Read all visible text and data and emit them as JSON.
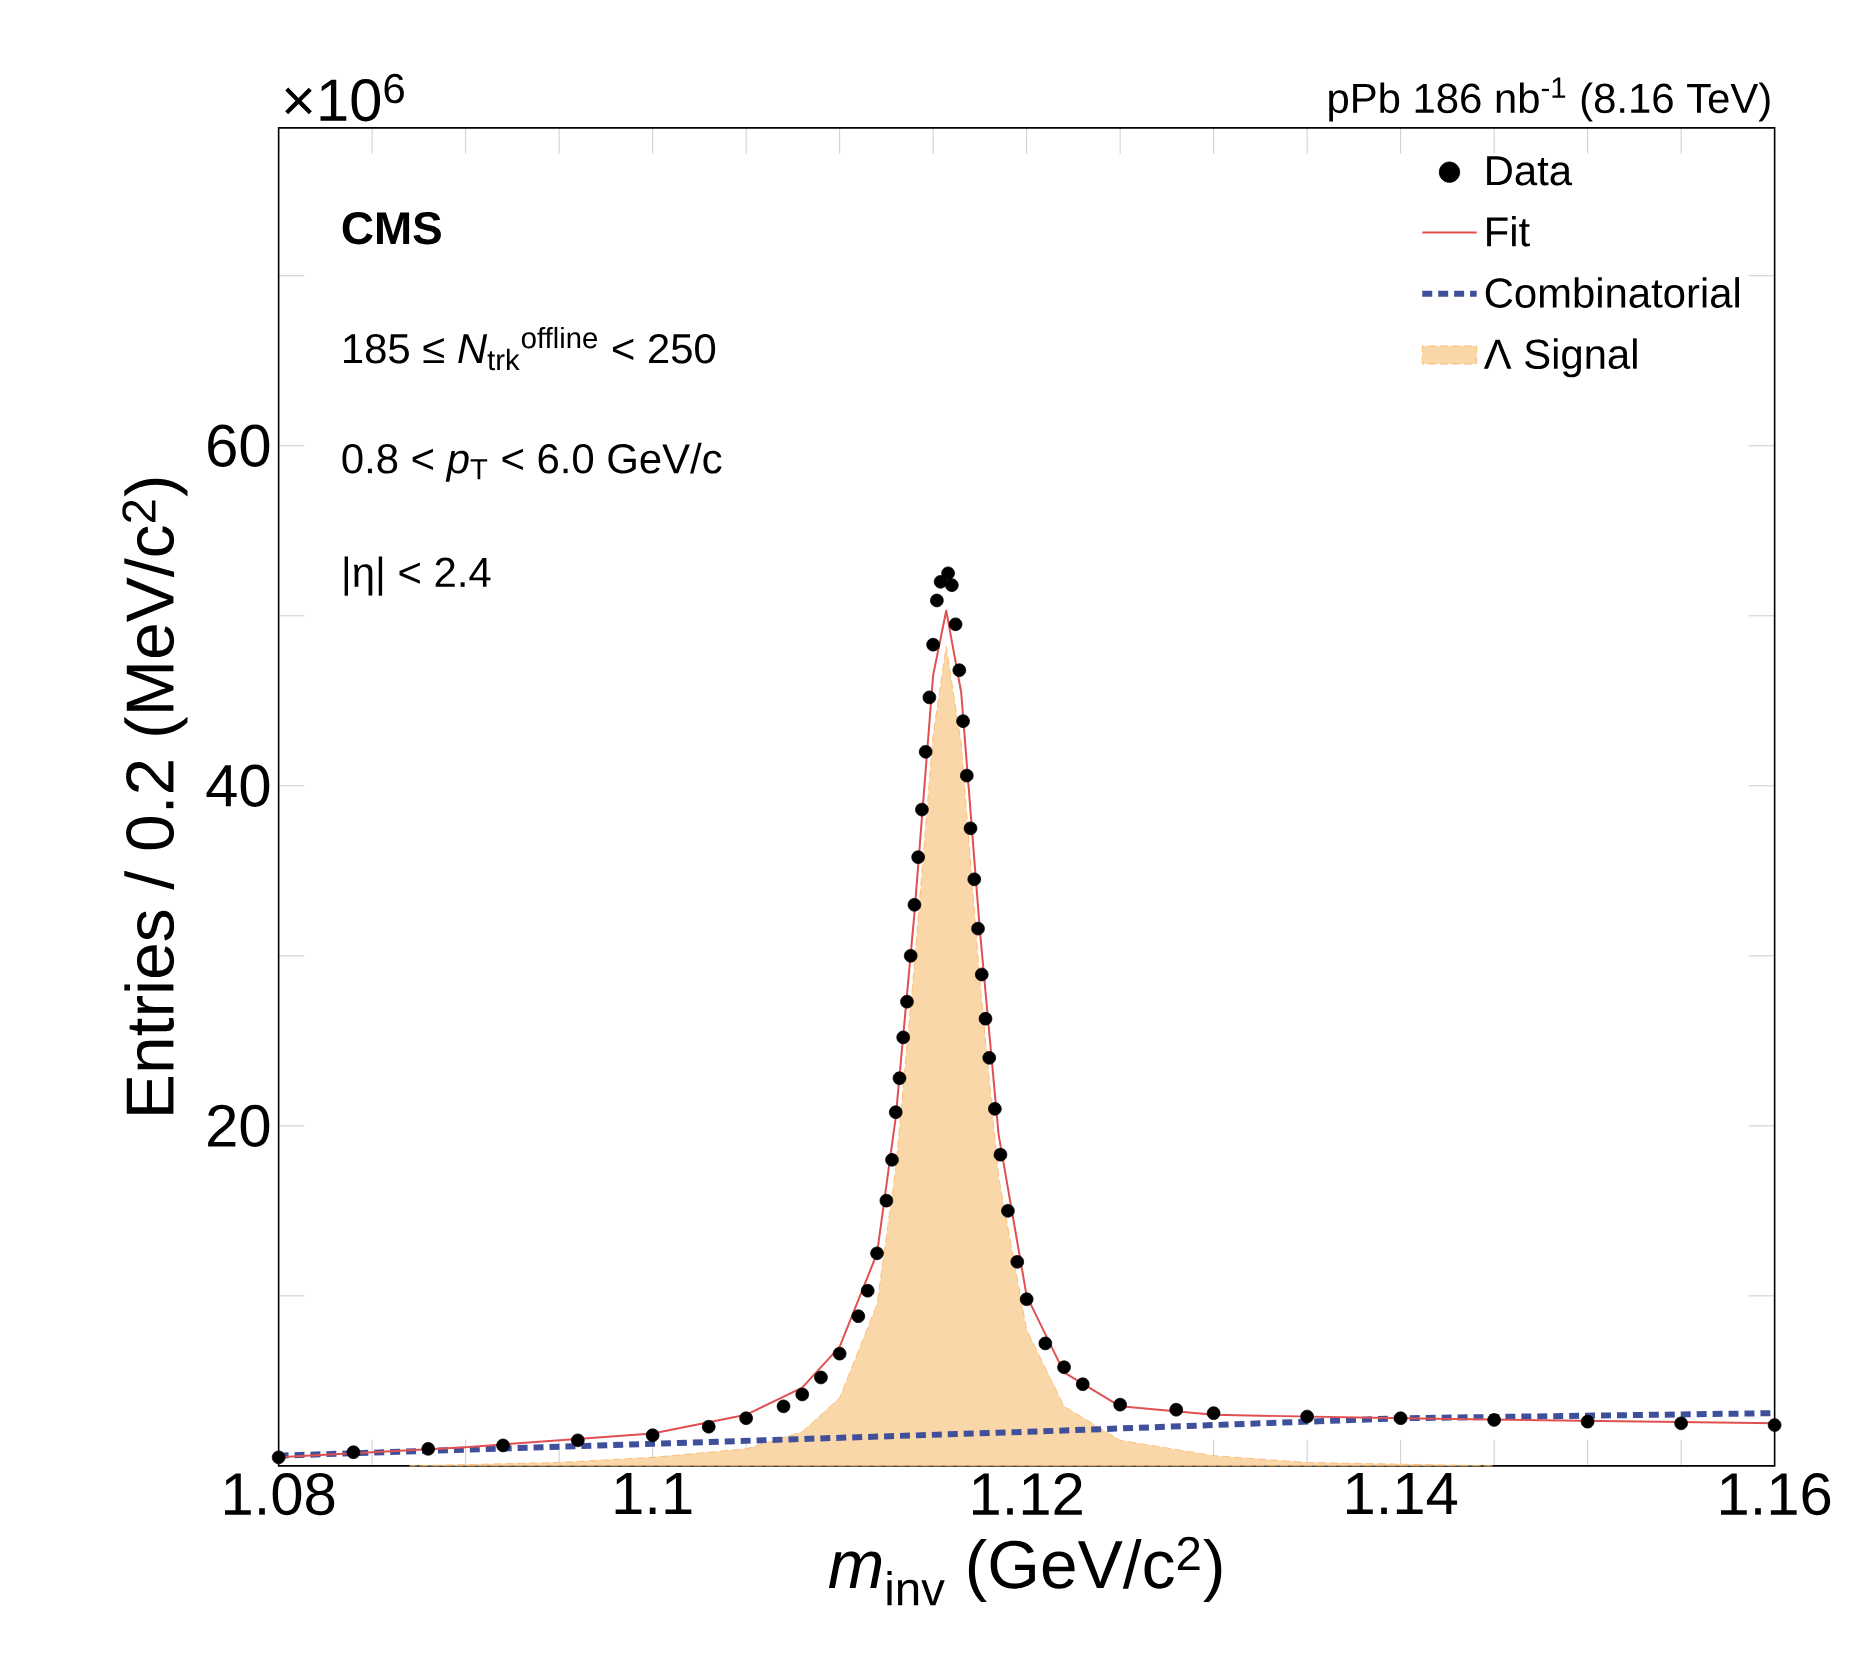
{
  "chart_data": {
    "type": "scatter",
    "xlabel": "*m*$_{inv}$ (GeV/c$^{2}$)",
    "ylabel": "Entries / 0.2 (MeV/c$^{2}$)",
    "annotations": [
      "×10$^{6}$",
      "pPb 186 nb$^{-1}$ (8.16 TeV)",
      "CMS",
      "185 ≤ *N*$_{trk}$$^{offline}$ < 250",
      "0.8 < *p*$_{T}$ < 6.0 GeV/c",
      "|η| < 2.4"
    ],
    "xlim": [
      1.08,
      1.16
    ],
    "ylim": [
      0,
      78.7
    ],
    "xticks": [
      1.08,
      {
        "value": 1.085,
        "label": null
      },
      {
        "value": 1.09,
        "label": null
      },
      {
        "value": 1.095,
        "label": null
      },
      1.1,
      {
        "value": 1.105,
        "label": null
      },
      {
        "value": 1.11,
        "label": null
      },
      {
        "value": 1.115,
        "label": null
      },
      1.12,
      {
        "value": 1.125,
        "label": null
      },
      {
        "value": 1.13,
        "label": null
      },
      {
        "value": 1.135,
        "label": null
      },
      1.14,
      {
        "value": 1.145,
        "label": null
      },
      {
        "value": 1.15,
        "label": null
      },
      {
        "value": 1.155,
        "label": null
      },
      1.16
    ],
    "yticks": [
      {
        "value": 10,
        "label": null
      },
      20,
      {
        "value": 30,
        "label": null
      },
      40,
      {
        "value": 50,
        "label": null
      },
      60,
      {
        "value": 70,
        "label": null
      }
    ],
    "legend": "top right",
    "marker": "circle",
    "series": [
      {
        "name": "Λ Signal",
        "type": "area",
        "marker": "none",
        "color": "#fad7a8",
        "x": [
          1.087,
          1.095,
          1.1,
          1.105,
          1.108,
          1.11,
          1.112,
          1.113,
          1.114,
          1.115,
          1.1157,
          1.1165,
          1.1175,
          1.1185,
          1.12,
          1.122,
          1.125,
          1.13,
          1.135,
          1.145
        ],
        "values": [
          0,
          0.2,
          0.5,
          1.0,
          2.0,
          4.0,
          9.5,
          17.5,
          29.5,
          43.0,
          48.2,
          42.5,
          28.5,
          17.0,
          8.0,
          3.5,
          1.5,
          0.6,
          0.2,
          0
        ]
      },
      {
        "name": "Combinatorial",
        "type": "line",
        "marker": "none",
        "line_style": "dotted",
        "color": "#3f4f9a",
        "x": [
          1.08,
          1.1,
          1.12,
          1.14,
          1.16
        ],
        "values": [
          0.6,
          1.3,
          2.0,
          2.8,
          3.1
        ]
      },
      {
        "name": "Fit",
        "type": "line",
        "marker": "none",
        "line_style": "solid",
        "color": "#e05050",
        "x": [
          1.08,
          1.09,
          1.1,
          1.105,
          1.108,
          1.11,
          1.112,
          1.113,
          1.114,
          1.115,
          1.1157,
          1.1165,
          1.1175,
          1.1185,
          1.12,
          1.122,
          1.125,
          1.13,
          1.14,
          1.16
        ],
        "values": [
          0.5,
          1.1,
          1.9,
          3.0,
          4.6,
          7.0,
          12.5,
          20.5,
          32.5,
          46.5,
          50.3,
          45.5,
          31.5,
          19.5,
          10.0,
          5.5,
          3.5,
          3.0,
          2.8,
          2.5
        ]
      },
      {
        "name": "Data",
        "color": "#000000",
        "x": [
          1.08,
          1.084,
          1.088,
          1.092,
          1.096,
          1.1,
          1.103,
          1.105,
          1.107,
          1.108,
          1.109,
          1.11,
          1.111,
          1.1115,
          1.112,
          1.1125,
          1.1128,
          1.113,
          1.1132,
          1.1134,
          1.1136,
          1.1138,
          1.114,
          1.1142,
          1.1144,
          1.1146,
          1.1148,
          1.115,
          1.1152,
          1.1154,
          1.1156,
          1.1158,
          1.116,
          1.1162,
          1.1164,
          1.1166,
          1.1168,
          1.117,
          1.1172,
          1.1174,
          1.1176,
          1.1178,
          1.118,
          1.1183,
          1.1186,
          1.119,
          1.1195,
          1.12,
          1.121,
          1.122,
          1.123,
          1.125,
          1.128,
          1.13,
          1.135,
          1.14,
          1.145,
          1.15,
          1.155,
          1.16
        ],
        "values": [
          0.5,
          0.8,
          1.0,
          1.2,
          1.5,
          1.8,
          2.3,
          2.8,
          3.5,
          4.2,
          5.2,
          6.6,
          8.8,
          10.3,
          12.5,
          15.6,
          18.0,
          20.8,
          22.8,
          25.2,
          27.3,
          30.0,
          33.0,
          35.8,
          38.6,
          42.0,
          45.2,
          48.3,
          50.9,
          52.0,
          null,
          52.5,
          51.8,
          49.5,
          46.8,
          43.8,
          40.6,
          37.5,
          34.5,
          31.6,
          28.9,
          26.3,
          24.0,
          21.0,
          18.3,
          15.0,
          12.0,
          9.8,
          7.2,
          5.8,
          4.8,
          3.6,
          3.3,
          3.1,
          2.9,
          2.8,
          2.7,
          2.6,
          2.5,
          2.4
        ]
      }
    ]
  }
}
